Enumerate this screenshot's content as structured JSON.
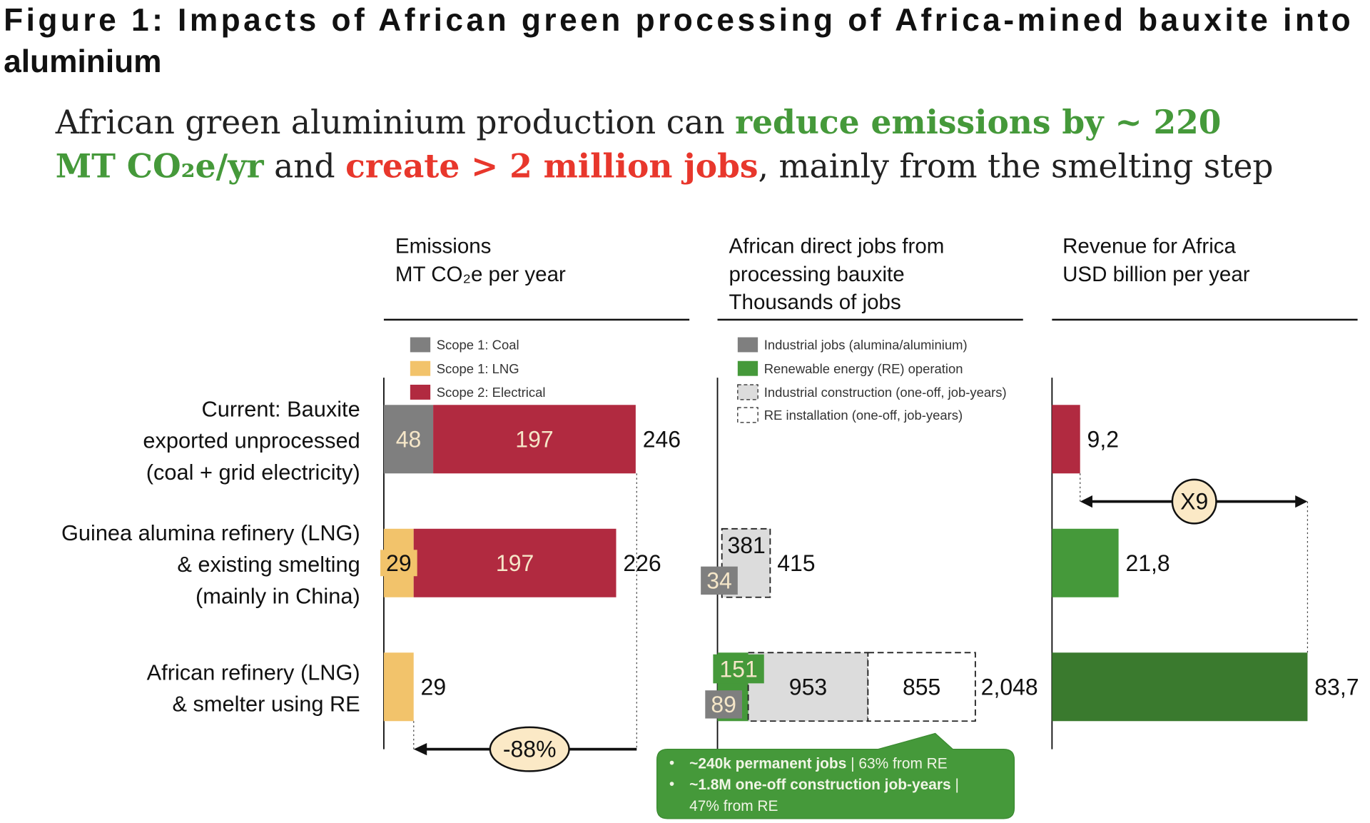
{
  "title": "Figure 1: Impacts of African green processing of Africa-mined bauxite into aluminium",
  "title_line1": "Figure 1: Impacts of African green processing of Africa-mined bauxite into",
  "title_line2": "aluminium",
  "subtitle": {
    "p1": "African green aluminium production can ",
    "p2": "reduce emissions by ~ 220",
    "p3": "MT CO₂e/yr",
    "p4": " and ",
    "p5": "create > 2 million jobs",
    "p6": ", mainly from the smelting step"
  },
  "colors": {
    "coal": "#7f7f7f",
    "lng": "#f2c36b",
    "electrical": "#b12a40",
    "industrial_jobs": "#7f7f7f",
    "re_operation": "#45993a",
    "construction": "#dcdcdc",
    "re_installation": "#ffffff",
    "revenue_dark": "#3a7a2e",
    "highlight_green": "#45993a",
    "highlight_red": "#e8372c",
    "annotation_fill": "#fbe9c6"
  },
  "rows": [
    [
      "Current: Bauxite",
      "exported unprocessed",
      "(coal + grid electricity)"
    ],
    [
      "Guinea alumina refinery (LNG)",
      "& existing smelting",
      "(mainly in China)"
    ],
    [
      "African refinery (LNG)",
      "& smelter using RE"
    ]
  ],
  "chart_data": [
    {
      "type": "bar",
      "stacked": true,
      "orientation": "horizontal",
      "title": "Emissions",
      "unit_label": "MT CO₂e per year",
      "categories": [
        "Current",
        "Guinea refinery + existing smelting",
        "African refinery + RE smelter"
      ],
      "series": [
        {
          "name": "Scope 1: Coal",
          "values": [
            48,
            0,
            0
          ],
          "color_key": "coal"
        },
        {
          "name": "Scope 1: LNG",
          "values": [
            0,
            29,
            29
          ],
          "color_key": "lng"
        },
        {
          "name": "Scope 2: Electrical",
          "values": [
            197,
            197,
            0
          ],
          "color_key": "electrical"
        }
      ],
      "totals": [
        "246",
        "226",
        "29"
      ],
      "segment_labels": [
        [
          "48",
          "197"
        ],
        [
          "29",
          "197"
        ],
        []
      ],
      "annotation": "-88%",
      "legend_position": "top-left"
    },
    {
      "type": "bar",
      "stacked": true,
      "orientation": "horizontal",
      "title_line1": "African direct jobs from",
      "title_line2": "processing bauxite",
      "unit_label": "Thousands of jobs",
      "categories": [
        "Current",
        "Guinea refinery + existing smelting",
        "African refinery + RE smelter"
      ],
      "series": [
        {
          "name": "Industrial jobs (alumina/aluminium)",
          "values": [
            0,
            34,
            89
          ],
          "color_key": "industrial_jobs"
        },
        {
          "name": "Renewable energy (RE) operation",
          "values": [
            0,
            0,
            151
          ],
          "color_key": "re_operation"
        },
        {
          "name": "Industrial construction (one-off, job-years)",
          "values": [
            0,
            381,
            953
          ],
          "color_key": "construction"
        },
        {
          "name": "RE installation (one-off, job-years)",
          "values": [
            0,
            0,
            855
          ],
          "color_key": "re_installation"
        }
      ],
      "labels": {
        "r2_ind": "34",
        "r2_con": "381",
        "r3_ind": "89",
        "r3_re": "151",
        "r3_con": "953",
        "r3_inst": "855"
      },
      "totals": [
        "",
        "415",
        "2,048"
      ],
      "callout": {
        "b1_bold": "~240k permanent jobs",
        "b1_rest": " | 63% from RE",
        "b2_bold": "~1.8M one-off construction job-years",
        "b2_rest": " |",
        "b2_line2": "47% from RE"
      },
      "legend_position": "top-left"
    },
    {
      "type": "bar",
      "orientation": "horizontal",
      "title": "Revenue for Africa",
      "unit_label": "USD billion per year",
      "categories": [
        "Current",
        "Guinea refinery + existing smelting",
        "African refinery + RE smelter"
      ],
      "values": [
        9.2,
        21.8,
        83.7
      ],
      "value_labels": [
        "9,2",
        "21,8",
        "83,7"
      ],
      "color_keys": [
        "electrical",
        "re_operation",
        "revenue_dark"
      ],
      "annotation": "X9"
    }
  ]
}
